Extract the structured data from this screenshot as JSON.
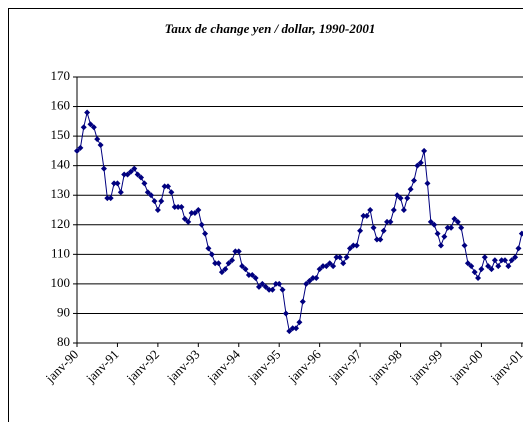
{
  "chart_data": {
    "type": "line",
    "title": "Taux de change yen / dollar, 1990-2001",
    "categories": [
      "janv-90",
      null,
      null,
      null,
      null,
      null,
      null,
      null,
      null,
      null,
      null,
      null,
      "janv-91",
      null,
      null,
      null,
      null,
      null,
      null,
      null,
      null,
      null,
      null,
      null,
      "janv-92",
      null,
      null,
      null,
      null,
      null,
      null,
      null,
      null,
      null,
      null,
      null,
      "janv-93",
      null,
      null,
      null,
      null,
      null,
      null,
      null,
      null,
      null,
      null,
      null,
      "janv-94",
      null,
      null,
      null,
      null,
      null,
      null,
      null,
      null,
      null,
      null,
      null,
      "janv-95",
      null,
      null,
      null,
      null,
      null,
      null,
      null,
      null,
      null,
      null,
      null,
      "janv-96",
      null,
      null,
      null,
      null,
      null,
      null,
      null,
      null,
      null,
      null,
      null,
      "janv-97",
      null,
      null,
      null,
      null,
      null,
      null,
      null,
      null,
      null,
      null,
      null,
      "janv-98",
      null,
      null,
      null,
      null,
      null,
      null,
      null,
      null,
      null,
      null,
      null,
      "janv-99",
      null,
      null,
      null,
      null,
      null,
      null,
      null,
      null,
      null,
      null,
      null,
      "janv-00",
      null,
      null,
      null,
      null,
      null,
      null,
      null,
      null,
      null,
      null,
      null,
      "janv-01"
    ],
    "series": [
      {
        "color": "#00007f",
        "values": [
          145,
          146,
          153,
          158,
          154,
          153,
          149,
          147,
          139,
          129,
          129,
          134,
          134,
          131,
          137,
          137,
          138,
          139,
          137,
          136,
          134,
          131,
          130,
          128,
          125,
          128,
          133,
          133,
          131,
          126,
          126,
          126,
          122,
          121,
          124,
          124,
          125,
          120,
          117,
          112,
          110,
          107,
          107,
          104,
          105,
          107,
          108,
          111,
          111,
          106,
          105,
          103,
          103,
          102,
          99,
          100,
          99,
          98,
          98,
          100,
          100,
          98,
          90,
          84,
          85,
          85,
          87,
          94,
          100,
          101,
          102,
          102,
          105,
          106,
          106,
          107,
          106,
          109,
          109,
          107,
          109,
          112,
          113,
          113,
          118,
          123,
          123,
          125,
          119,
          115,
          115,
          118,
          121,
          121,
          125,
          130,
          129,
          125,
          129,
          132,
          135,
          140,
          141,
          145,
          134,
          121,
          120,
          117,
          113,
          116,
          119,
          119,
          122,
          121,
          119,
          113,
          107,
          106,
          104,
          102,
          105,
          109,
          106,
          105,
          108,
          106,
          108,
          108,
          106,
          108,
          109,
          112,
          117
        ]
      }
    ],
    "ylim": [
      80,
      170
    ],
    "yticks": [
      80,
      90,
      100,
      110,
      120,
      130,
      140,
      150,
      160,
      170
    ],
    "grid": true
  }
}
